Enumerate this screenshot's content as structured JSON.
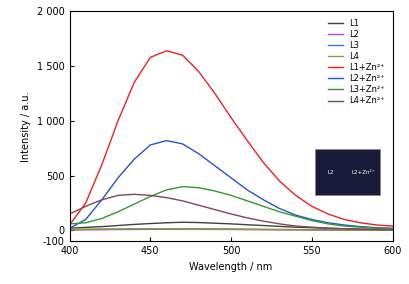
{
  "chart_data": {
    "type": "line",
    "x_label": "Wavelength / nm",
    "y_label": "Intensity / a.u.",
    "x": [
      400,
      410,
      420,
      430,
      440,
      450,
      460,
      470,
      480,
      490,
      500,
      510,
      520,
      530,
      540,
      550,
      560,
      570,
      580,
      590,
      600
    ],
    "series": [
      {
        "name": "L1",
        "color": "#404040",
        "values": [
          20,
          28,
          35,
          45,
          55,
          63,
          70,
          75,
          72,
          66,
          60,
          52,
          45,
          37,
          30,
          25,
          20,
          16,
          12,
          10,
          8
        ]
      },
      {
        "name": "L2",
        "color": "#cc44cc",
        "values": [
          5,
          6,
          7,
          8,
          9,
          10,
          10,
          10,
          10,
          9,
          9,
          8,
          7,
          6,
          6,
          5,
          5,
          4,
          4,
          3,
          3
        ]
      },
      {
        "name": "L3",
        "color": "#3377cc",
        "values": [
          8,
          9,
          10,
          11,
          12,
          13,
          14,
          14,
          14,
          13,
          12,
          11,
          10,
          9,
          8,
          7,
          6,
          5,
          5,
          4,
          4
        ]
      },
      {
        "name": "L4",
        "color": "#999933",
        "values": [
          10,
          11,
          12,
          13,
          14,
          14,
          14,
          13,
          12,
          11,
          10,
          9,
          8,
          7,
          6,
          5,
          5,
          4,
          4,
          3,
          3
        ]
      },
      {
        "name": "L1+Zn²⁺",
        "color": "#ee2222",
        "values": [
          50,
          250,
          600,
          1000,
          1350,
          1580,
          1640,
          1600,
          1450,
          1250,
          1030,
          820,
          620,
          450,
          320,
          220,
          150,
          100,
          70,
          50,
          40
        ]
      },
      {
        "name": "L2+Zn²⁺",
        "color": "#2255cc",
        "values": [
          20,
          100,
          280,
          480,
          650,
          780,
          820,
          790,
          700,
          590,
          480,
          370,
          280,
          200,
          140,
          100,
          70,
          50,
          35,
          25,
          20
        ]
      },
      {
        "name": "L3+Zn²⁺",
        "color": "#339933",
        "values": [
          60,
          70,
          110,
          170,
          240,
          310,
          370,
          400,
          390,
          360,
          320,
          270,
          220,
          170,
          130,
          90,
          60,
          40,
          30,
          20,
          15
        ]
      },
      {
        "name": "L4+Zn²⁺",
        "color": "#884455",
        "values": [
          150,
          220,
          280,
          320,
          330,
          320,
          300,
          270,
          230,
          190,
          150,
          115,
          85,
          60,
          40,
          30,
          20,
          15,
          10,
          8,
          5
        ]
      }
    ],
    "xlim": [
      400,
      600
    ],
    "xticks": [
      400,
      450,
      500,
      550,
      600
    ],
    "ylim": [
      -100,
      2000
    ],
    "yticks": [
      {
        "value": -100,
        "label": "-100"
      },
      0,
      500,
      {
        "value": 1000,
        "label": "1 000"
      },
      {
        "value": 1500,
        "label": "1 500"
      },
      {
        "value": 2000,
        "label": "2 000"
      }
    ],
    "legend": "upper right",
    "grid": false,
    "annotations": [
      "L2",
      "L2+Zn²⁺"
    ]
  }
}
